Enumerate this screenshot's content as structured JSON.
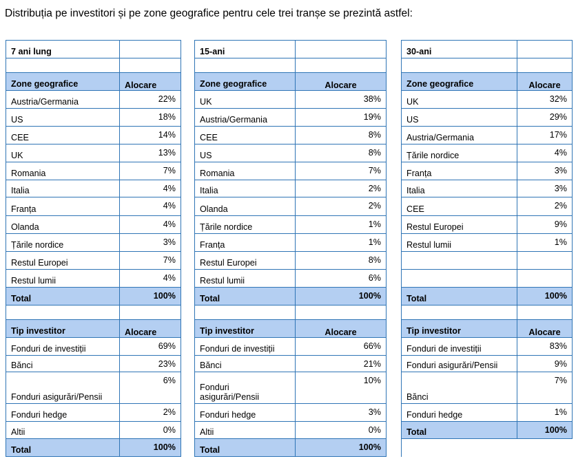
{
  "heading": "Distribuția pe investitori și pe zone geografice pentru cele trei tranșe se prezintă astfel:",
  "tranches": [
    {
      "title": "7 ani lung",
      "geo_header": [
        "Zone geografice",
        "Alocare"
      ],
      "geo": [
        [
          "Austria/Germania",
          "22%"
        ],
        [
          "US",
          "18%"
        ],
        [
          "CEE",
          "14%"
        ],
        [
          "UK",
          "13%"
        ],
        [
          "Romania",
          "7%"
        ],
        [
          "Italia",
          "4%"
        ],
        [
          "Franța",
          "4%"
        ],
        [
          "Olanda",
          "4%"
        ],
        [
          "Țările nordice",
          "3%"
        ],
        [
          "Restul Europei",
          "7%"
        ],
        [
          "Restul lumii",
          "4%"
        ]
      ],
      "geo_total": [
        "Total",
        "100%"
      ],
      "inv_header": [
        "Tip investitor",
        "Alocare"
      ],
      "inv": [
        [
          "Fonduri de investiții",
          "69%"
        ],
        [
          "Bănci",
          "23%"
        ],
        [
          "Fonduri asigurări/Pensii",
          "6%"
        ],
        [
          "Fonduri hedge",
          "2%"
        ],
        [
          "Altii",
          "0%"
        ]
      ],
      "inv_total": [
        "Total",
        "100%"
      ]
    },
    {
      "title": "15-ani",
      "geo_header": [
        "Zone geografice",
        "Alocare"
      ],
      "geo": [
        [
          "UK",
          "38%"
        ],
        [
          "Austria/Germania",
          "19%"
        ],
        [
          "CEE",
          "8%"
        ],
        [
          "US",
          "8%"
        ],
        [
          "Romania",
          "7%"
        ],
        [
          "Italia",
          "2%"
        ],
        [
          "Olanda",
          "2%"
        ],
        [
          "Țările nordice",
          "1%"
        ],
        [
          "Franța",
          "1%"
        ],
        [
          "Restul Europei",
          "8%"
        ],
        [
          "Restul lumii",
          "6%"
        ]
      ],
      "geo_total": [
        "Total",
        "100%"
      ],
      "inv_header": [
        "Tip investitor",
        "Alocare"
      ],
      "inv": [
        [
          "Fonduri de investiții",
          "66%"
        ],
        [
          "Bănci",
          "21%"
        ],
        [
          "Fonduri asigurări/Pensii",
          "10%"
        ],
        [
          "Fonduri hedge",
          "3%"
        ],
        [
          "Altii",
          "0%"
        ]
      ],
      "inv_total": [
        "Total",
        "100%"
      ]
    },
    {
      "title": "30-ani",
      "geo_header": [
        "Zone geografice",
        "Alocare"
      ],
      "geo": [
        [
          "UK",
          "32%"
        ],
        [
          "US",
          "29%"
        ],
        [
          "Austria/Germania",
          "17%"
        ],
        [
          "Țările nordice",
          "4%"
        ],
        [
          "Franța",
          "3%"
        ],
        [
          "Italia",
          "3%"
        ],
        [
          "CEE",
          "2%"
        ],
        [
          "Restul Europei",
          "9%"
        ],
        [
          "Restul lumii",
          "1%"
        ]
      ],
      "geo_total": [
        "Total",
        "100%"
      ],
      "inv_header": [
        "Tip investitor",
        "Alocare"
      ],
      "inv": [
        [
          "Fonduri de investiții",
          "83%"
        ],
        [
          "Fonduri asigurări/Pensii",
          "9%"
        ],
        [
          "Bănci",
          "7%"
        ],
        [
          "Fonduri hedge",
          "1%"
        ]
      ],
      "inv_total": [
        "Total",
        "100%"
      ]
    }
  ]
}
